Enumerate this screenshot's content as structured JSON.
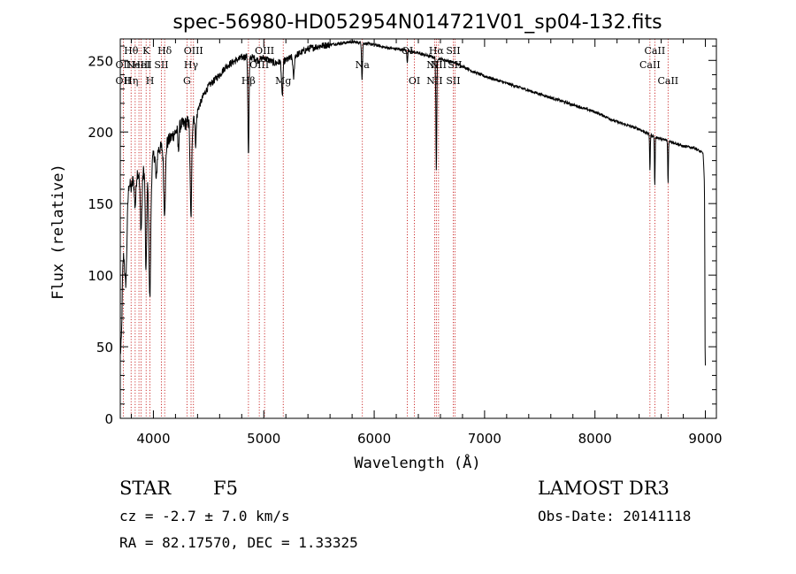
{
  "chart_data": {
    "type": "line",
    "title": "spec-56980-HD052954N014721V01_sp04-132.fits",
    "xlabel": "Wavelength (Å)",
    "ylabel": "Flux (relative)",
    "xlim": [
      3700,
      9100
    ],
    "ylim": [
      0,
      265
    ],
    "xticks": [
      4000,
      5000,
      6000,
      7000,
      8000,
      9000
    ],
    "yticks": [
      0,
      50,
      100,
      150,
      200,
      250
    ],
    "continuum": [
      [
        3700,
        60
      ],
      [
        3720,
        110
      ],
      [
        3740,
        130
      ],
      [
        3760,
        150
      ],
      [
        3780,
        165
      ],
      [
        3800,
        160
      ],
      [
        3820,
        170
      ],
      [
        3840,
        175
      ],
      [
        3860,
        172
      ],
      [
        3880,
        170
      ],
      [
        3900,
        175
      ],
      [
        3920,
        172
      ],
      [
        3950,
        168
      ],
      [
        4000,
        183
      ],
      [
        4050,
        188
      ],
      [
        4100,
        190
      ],
      [
        4150,
        195
      ],
      [
        4200,
        200
      ],
      [
        4250,
        205
      ],
      [
        4300,
        206
      ],
      [
        4350,
        210
      ],
      [
        4400,
        215
      ],
      [
        4450,
        225
      ],
      [
        4500,
        232
      ],
      [
        4550,
        236
      ],
      [
        4600,
        240
      ],
      [
        4650,
        245
      ],
      [
        4700,
        248
      ],
      [
        4750,
        250
      ],
      [
        4800,
        252
      ],
      [
        4850,
        253
      ],
      [
        4900,
        252
      ],
      [
        4950,
        250
      ],
      [
        5000,
        252
      ],
      [
        5100,
        248
      ],
      [
        5200,
        250
      ],
      [
        5300,
        254
      ],
      [
        5400,
        258
      ],
      [
        5500,
        260
      ],
      [
        5600,
        261
      ],
      [
        5700,
        262
      ],
      [
        5800,
        263
      ],
      [
        5900,
        262
      ],
      [
        6000,
        261
      ],
      [
        6100,
        259
      ],
      [
        6200,
        258
      ],
      [
        6300,
        257
      ],
      [
        6400,
        255
      ],
      [
        6500,
        253
      ],
      [
        6600,
        251
      ],
      [
        6700,
        249
      ],
      [
        6800,
        246
      ],
      [
        6900,
        242
      ],
      [
        7000,
        239
      ],
      [
        7200,
        234
      ],
      [
        7400,
        229
      ],
      [
        7600,
        224
      ],
      [
        7800,
        219
      ],
      [
        8000,
        214
      ],
      [
        8200,
        207
      ],
      [
        8400,
        202
      ],
      [
        8500,
        198
      ],
      [
        8600,
        195
      ],
      [
        8700,
        193
      ],
      [
        8800,
        190
      ],
      [
        8900,
        189
      ],
      [
        8980,
        185
      ],
      [
        9000,
        150
      ]
    ],
    "absorption_features": [
      [
        3710,
        30,
        8
      ],
      [
        3750,
        45,
        10
      ],
      [
        3835,
        25,
        8
      ],
      [
        3889,
        40,
        8
      ],
      [
        3933,
        70,
        6
      ],
      [
        3968,
        90,
        8
      ],
      [
        4026,
        20,
        6
      ],
      [
        4101,
        45,
        8
      ],
      [
        4226,
        15,
        5
      ],
      [
        4340,
        70,
        7
      ],
      [
        4383,
        20,
        6
      ],
      [
        4861,
        70,
        5
      ],
      [
        5167,
        25,
        6
      ],
      [
        5270,
        15,
        6
      ],
      [
        5890,
        25,
        4
      ],
      [
        6300,
        8,
        4
      ],
      [
        6563,
        80,
        4
      ],
      [
        8498,
        25,
        3
      ],
      [
        8542,
        35,
        3
      ],
      [
        8662,
        30,
        3
      ],
      [
        8999,
        120,
        3
      ]
    ],
    "line_markers": [
      {
        "wl": 3727,
        "labels": [
          {
            "text": "OII",
            "row": 2
          },
          {
            "text": "OII",
            "row": 3
          }
        ]
      },
      {
        "wl": 3798,
        "labels": [
          {
            "text": "Hθ",
            "row": 1
          },
          {
            "text": "Hη",
            "row": 3
          }
        ]
      },
      {
        "wl": 3835,
        "labels": []
      },
      {
        "wl": 3869,
        "labels": [
          {
            "text": "NeIII",
            "row": 2
          }
        ]
      },
      {
        "wl": 3889,
        "labels": [
          {
            "text": "HeI",
            "row": 2
          }
        ]
      },
      {
        "wl": 3934,
        "labels": [
          {
            "text": "K",
            "row": 1
          }
        ]
      },
      {
        "wl": 3969,
        "labels": [
          {
            "text": "H",
            "row": 3
          }
        ]
      },
      {
        "wl": 4072,
        "labels": [
          {
            "text": "SII",
            "row": 2
          }
        ]
      },
      {
        "wl": 4102,
        "labels": [
          {
            "text": "Hδ",
            "row": 1
          }
        ]
      },
      {
        "wl": 4304,
        "labels": [
          {
            "text": "G",
            "row": 3
          }
        ]
      },
      {
        "wl": 4341,
        "labels": [
          {
            "text": "Hγ",
            "row": 2
          }
        ]
      },
      {
        "wl": 4363,
        "labels": [
          {
            "text": "OIII",
            "row": 1
          }
        ]
      },
      {
        "wl": 4861,
        "labels": [
          {
            "text": "Hβ",
            "row": 3
          }
        ]
      },
      {
        "wl": 4959,
        "labels": [
          {
            "text": "OIII",
            "row": 2
          }
        ]
      },
      {
        "wl": 5007,
        "labels": [
          {
            "text": "OIII",
            "row": 1
          }
        ]
      },
      {
        "wl": 5176,
        "labels": [
          {
            "text": "Mg",
            "row": 3
          }
        ]
      },
      {
        "wl": 5893,
        "labels": [
          {
            "text": "Na",
            "row": 2
          }
        ]
      },
      {
        "wl": 6300,
        "labels": [
          {
            "text": "OI",
            "row": 1
          }
        ]
      },
      {
        "wl": 6364,
        "labels": [
          {
            "text": "OI",
            "row": 3
          }
        ]
      },
      {
        "wl": 6548,
        "labels": [
          {
            "text": "NII",
            "row": 2
          },
          {
            "text": "NII",
            "row": 3
          }
        ]
      },
      {
        "wl": 6563,
        "labels": [
          {
            "text": "Hα",
            "row": 1
          }
        ]
      },
      {
        "wl": 6583,
        "labels": [
          {
            "text": "NII",
            "row": 2
          }
        ]
      },
      {
        "wl": 6716,
        "labels": [
          {
            "text": "SII",
            "row": 1
          },
          {
            "text": "SII",
            "row": 3
          }
        ]
      },
      {
        "wl": 6731,
        "labels": [
          {
            "text": "SII",
            "row": 2
          }
        ]
      },
      {
        "wl": 8498,
        "labels": [
          {
            "text": "CaII",
            "row": 2
          }
        ]
      },
      {
        "wl": 8542,
        "labels": [
          {
            "text": "CaII",
            "row": 1
          }
        ]
      },
      {
        "wl": 8662,
        "labels": [
          {
            "text": "CaII",
            "row": 3
          }
        ]
      }
    ]
  },
  "info": {
    "object_class": "STAR",
    "subclass": "F5",
    "survey": "LAMOST DR3",
    "cz_line": "cz = -2.7 ± 7.0 km/s",
    "obs_date": "Obs-Date: 20141118",
    "coords_line": "RA =  82.17570, DEC =   1.33325"
  },
  "colors": {
    "spectrum": "#000000",
    "marker": "#c00000"
  }
}
